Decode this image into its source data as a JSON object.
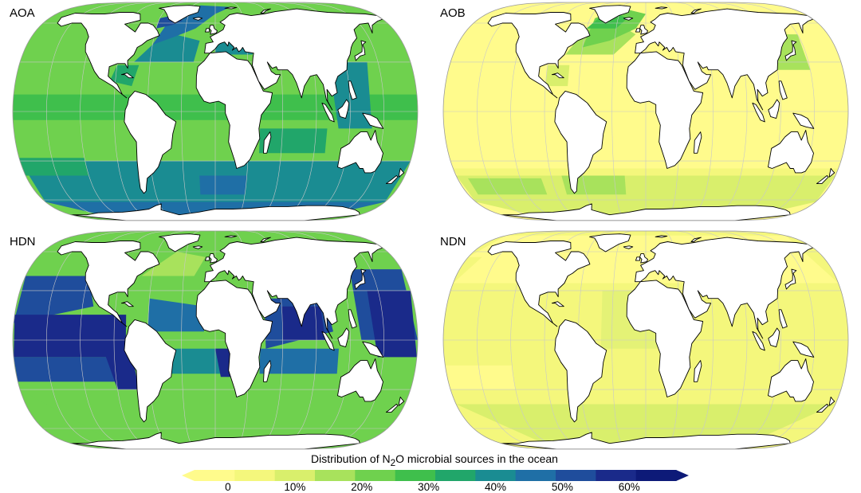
{
  "panels": [
    {
      "label": "AOA",
      "scheme": "aoa"
    },
    {
      "label": "AOB",
      "scheme": "aob"
    },
    {
      "label": "HDN",
      "scheme": "hdn"
    },
    {
      "label": "NDN",
      "scheme": "ndn"
    }
  ],
  "legend": {
    "title_pre": "Distribution of N",
    "title_sub": "2",
    "title_post": "O microbial sources in the ocean",
    "ticks": [
      "0",
      "10%",
      "20%",
      "30%",
      "40%",
      "50%",
      "60%"
    ],
    "tick_values": [
      0,
      10,
      20,
      30,
      40,
      50,
      60
    ],
    "range": [
      -5,
      67
    ],
    "colors": [
      "#fffb8c",
      "#f4f77c",
      "#d9ef6c",
      "#a8e25c",
      "#6fd14e",
      "#3fbf4c",
      "#21a66a",
      "#1a8c92",
      "#1f6fa6",
      "#1f4d9c",
      "#1a2a8a",
      "#0d1a78"
    ]
  },
  "colors": {
    "land": "#ffffff",
    "coast": "#000000",
    "grid": "#c8c8c8"
  }
}
